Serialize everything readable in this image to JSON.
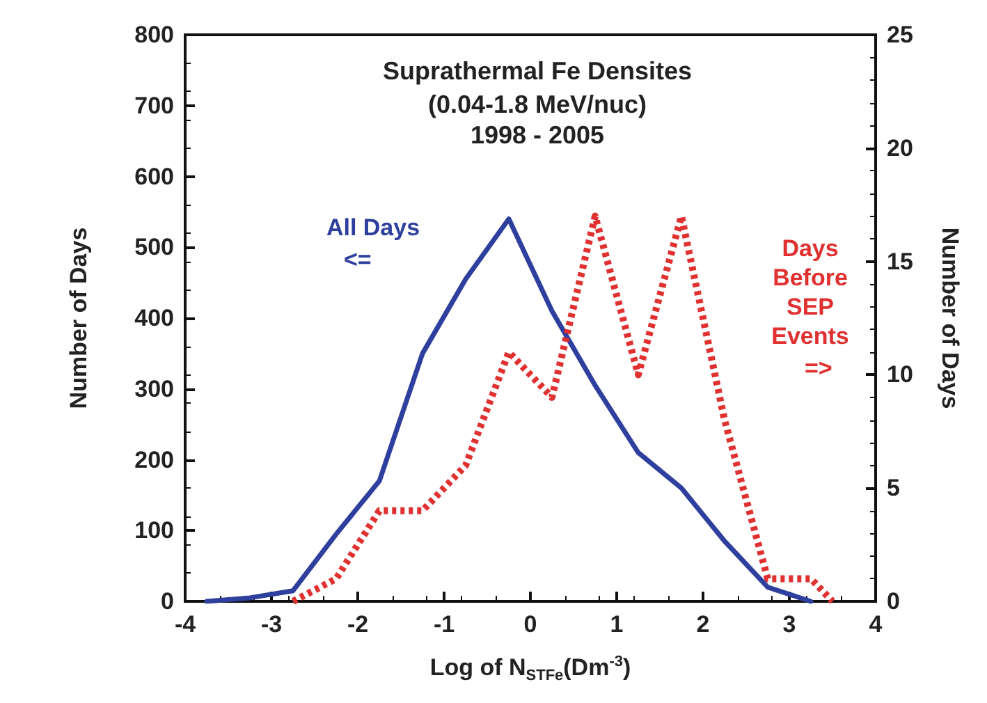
{
  "chart_data": {
    "type": "line",
    "title": "Suprathermal Fe Densites",
    "subtitle": "(0.04-1.8 MeV/nuc)\n1998 - 2005",
    "xlabel": "Log of N$_{STFe}$(Dm$^{-3}$)",
    "ylabel": "Number of Days",
    "y2label": "Number of Days",
    "xlim": [
      -4,
      4
    ],
    "xticks": [
      -4,
      -3,
      -2,
      -1,
      0,
      1,
      2,
      3,
      4
    ],
    "ylim": [
      0,
      800
    ],
    "yticks": [
      0,
      100,
      200,
      300,
      400,
      500,
      600,
      700,
      800
    ],
    "y2lim": [
      0,
      25
    ],
    "y2ticks": [
      0,
      5,
      10,
      15,
      20,
      25
    ],
    "grid": false,
    "legend": false,
    "marker": "none",
    "annotations": [
      "<=",
      "=>"
    ],
    "series": [
      {
        "name": "All Days",
        "color": "#2e3f9e",
        "line_style": "solid",
        "x": [
          -3.75,
          -3.25,
          -2.75,
          -2.25,
          -1.75,
          -1.25,
          -0.75,
          -0.25,
          0.25,
          0.75,
          1.25,
          1.75,
          2.25,
          2.75,
          3.25
        ],
        "values": [
          0,
          5,
          15,
          95,
          170,
          350,
          455,
          540,
          410,
          305,
          210,
          160,
          85,
          20,
          0
        ]
      },
      {
        "name": "Days Before SEP Events",
        "color": "#e03030",
        "line_style": "dotted",
        "axis": "y2",
        "x": [
          -2.75,
          -2.25,
          -1.75,
          -1.25,
          -0.75,
          -0.25,
          0.25,
          0.75,
          1.25,
          1.75,
          2.25,
          2.75,
          3.25,
          3.5
        ],
        "values": [
          0,
          1,
          4,
          4,
          6,
          11,
          9,
          17,
          10,
          17,
          8,
          1,
          1,
          0
        ]
      }
    ]
  }
}
